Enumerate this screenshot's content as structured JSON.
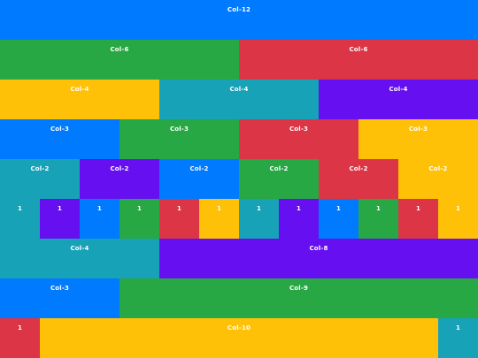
{
  "colors": {
    "blue": "#007bff",
    "green": "#28a745",
    "red": "#dc3545",
    "yellow": "#ffc107",
    "teal": "#17a2b8",
    "purple": "#6610f2"
  },
  "rows": [
    {
      "cells": [
        {
          "label": "Col-12",
          "span": 12,
          "color": "blue"
        }
      ]
    },
    {
      "cells": [
        {
          "label": "Col-6",
          "span": 6,
          "color": "green"
        },
        {
          "label": "Col-6",
          "span": 6,
          "color": "red"
        }
      ]
    },
    {
      "cells": [
        {
          "label": "Col-4",
          "span": 4,
          "color": "yellow"
        },
        {
          "label": "Col-4",
          "span": 4,
          "color": "teal"
        },
        {
          "label": "Col-4",
          "span": 4,
          "color": "purple"
        }
      ]
    },
    {
      "cells": [
        {
          "label": "Col-3",
          "span": 3,
          "color": "blue"
        },
        {
          "label": "Col-3",
          "span": 3,
          "color": "green"
        },
        {
          "label": "Col-3",
          "span": 3,
          "color": "red"
        },
        {
          "label": "Col-3",
          "span": 3,
          "color": "yellow"
        }
      ]
    },
    {
      "cells": [
        {
          "label": "Col-2",
          "span": 2,
          "color": "teal"
        },
        {
          "label": "Col-2",
          "span": 2,
          "color": "purple"
        },
        {
          "label": "Col-2",
          "span": 2,
          "color": "blue"
        },
        {
          "label": "Col-2",
          "span": 2,
          "color": "green"
        },
        {
          "label": "Col-2",
          "span": 2,
          "color": "red"
        },
        {
          "label": "Col-2",
          "span": 2,
          "color": "yellow"
        }
      ]
    },
    {
      "cells": [
        {
          "label": "1",
          "span": 1,
          "color": "teal"
        },
        {
          "label": "1",
          "span": 1,
          "color": "purple"
        },
        {
          "label": "1",
          "span": 1,
          "color": "blue"
        },
        {
          "label": "1",
          "span": 1,
          "color": "green"
        },
        {
          "label": "1",
          "span": 1,
          "color": "red"
        },
        {
          "label": "1",
          "span": 1,
          "color": "yellow"
        },
        {
          "label": "1",
          "span": 1,
          "color": "teal"
        },
        {
          "label": "1",
          "span": 1,
          "color": "purple"
        },
        {
          "label": "1",
          "span": 1,
          "color": "blue"
        },
        {
          "label": "1",
          "span": 1,
          "color": "green"
        },
        {
          "label": "1",
          "span": 1,
          "color": "red"
        },
        {
          "label": "1",
          "span": 1,
          "color": "yellow"
        }
      ]
    },
    {
      "cells": [
        {
          "label": "Col-4",
          "span": 4,
          "color": "teal"
        },
        {
          "label": "Col-8",
          "span": 8,
          "color": "purple"
        }
      ]
    },
    {
      "cells": [
        {
          "label": "Col-3",
          "span": 3,
          "color": "blue"
        },
        {
          "label": "Col-9",
          "span": 9,
          "color": "green"
        }
      ]
    },
    {
      "cells": [
        {
          "label": "1",
          "span": 1,
          "color": "red"
        },
        {
          "label": "Col-10",
          "span": 10,
          "color": "yellow"
        },
        {
          "label": "1",
          "span": 1,
          "color": "teal"
        }
      ]
    }
  ]
}
